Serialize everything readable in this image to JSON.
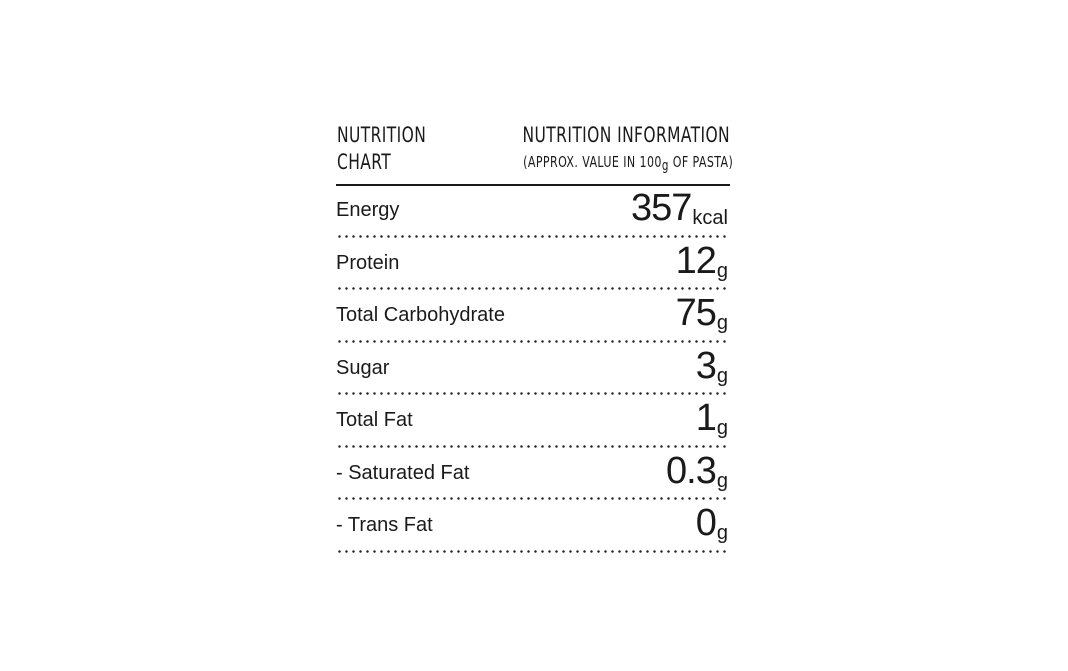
{
  "header": {
    "chart_title_line1": "NUTRITION",
    "chart_title_line2": "CHART",
    "info_title": "NUTRITION INFORMATION",
    "info_sub_pre": "(APPROX. VALUE IN 100",
    "info_sub_unit": "g",
    "info_sub_post": " OF PASTA)"
  },
  "rows": [
    {
      "label": "Energy",
      "value": "357",
      "unit": "kcal"
    },
    {
      "label": "Protein",
      "value": "12",
      "unit": "g"
    },
    {
      "label": "Total Carbohydrate",
      "value": "75",
      "unit": "g"
    },
    {
      "label": "Sugar",
      "value": "3",
      "unit": "g"
    },
    {
      "label": "Total Fat",
      "value": "1",
      "unit": "g"
    },
    {
      "label": "- Saturated Fat",
      "value": "0.3",
      "unit": "g"
    },
    {
      "label": "- Trans Fat",
      "value": "0",
      "unit": "g"
    }
  ]
}
